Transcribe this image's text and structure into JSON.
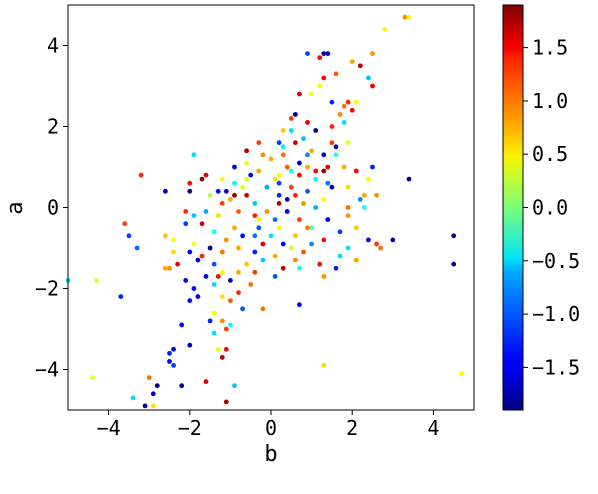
{
  "chart_data": {
    "type": "scatter",
    "title": "",
    "xlabel": "b",
    "ylabel": "a",
    "xlim": [
      -5,
      5
    ],
    "ylim": [
      -5,
      5
    ],
    "x_ticks": [
      -4,
      -2,
      0,
      2,
      4
    ],
    "x_tick_labels": [
      "−4",
      "−2",
      "0",
      "2",
      "4"
    ],
    "y_ticks": [
      -4,
      -2,
      0,
      2,
      4
    ],
    "y_tick_labels": [
      "−4",
      "−2",
      "0",
      "2",
      "4"
    ],
    "grid": false,
    "colormap": "jet",
    "colorbar": {
      "range": [
        -1.9,
        1.9
      ],
      "ticks": [
        -1.5,
        -1.0,
        -0.5,
        0.0,
        0.5,
        1.0,
        1.5
      ],
      "tick_labels": [
        "−1.5",
        "−1.0",
        "−0.5",
        "0.0",
        "0.5",
        "1.0",
        "1.5"
      ]
    },
    "points": [
      [
        3.3,
        4.7,
        0.9
      ],
      [
        3.4,
        4.7,
        0.5
      ],
      [
        2.8,
        4.4,
        0.5
      ],
      [
        2.5,
        3.8,
        0.9
      ],
      [
        1.3,
        3.8,
        -1.9
      ],
      [
        1.4,
        3.8,
        -1.6
      ],
      [
        0.9,
        3.8,
        -1.2
      ],
      [
        1.2,
        3.7,
        1.4
      ],
      [
        2.0,
        3.6,
        0.8
      ],
      [
        2.2,
        3.5,
        1.6
      ],
      [
        1.3,
        3.2,
        1.4
      ],
      [
        1.6,
        3.3,
        1.1
      ],
      [
        1.2,
        3.0,
        0.5
      ],
      [
        2.4,
        3.2,
        -0.7
      ],
      [
        0.7,
        2.8,
        1.6
      ],
      [
        1.0,
        2.8,
        0.4
      ],
      [
        2.5,
        3.0,
        1.5
      ],
      [
        1.5,
        2.6,
        -1.3
      ],
      [
        1.9,
        2.6,
        1.3
      ],
      [
        1.8,
        2.5,
        1.0
      ],
      [
        2.1,
        2.6,
        0.5
      ],
      [
        1.7,
        2.3,
        0.9
      ],
      [
        1.8,
        2.1,
        -0.6
      ],
      [
        2.0,
        2.4,
        1.4
      ],
      [
        0.6,
        2.3,
        -1.8
      ],
      [
        0.5,
        2.2,
        1.2
      ],
      [
        0.9,
        2.1,
        1.5
      ],
      [
        1.1,
        1.9,
        -1.8
      ],
      [
        0.5,
        1.9,
        -0.6
      ],
      [
        0.3,
        1.9,
        0.7
      ],
      [
        1.9,
        1.6,
        0.4
      ],
      [
        1.5,
        1.6,
        1.2
      ],
      [
        0.8,
        1.7,
        -0.7
      ],
      [
        1.6,
        1.5,
        -1.7
      ],
      [
        1.0,
        1.4,
        0.8
      ],
      [
        1.6,
        1.3,
        -0.3
      ],
      [
        0.6,
        1.6,
        1.6
      ],
      [
        0.2,
        1.6,
        -1.2
      ],
      [
        -0.3,
        1.6,
        1.2
      ],
      [
        -0.6,
        1.4,
        1.7
      ],
      [
        0.9,
        1.3,
        -0.9
      ],
      [
        1.3,
        1.3,
        -1.6
      ],
      [
        1.4,
        1.0,
        1.5
      ],
      [
        0.3,
        1.5,
        -0.5
      ],
      [
        -0.2,
        1.3,
        0.9
      ],
      [
        -1.9,
        1.3,
        -0.6
      ],
      [
        0.3,
        1.3,
        1.0
      ],
      [
        0.0,
        1.2,
        0.8
      ],
      [
        -0.6,
        1.1,
        0.4
      ],
      [
        0.4,
        1.0,
        1.1
      ],
      [
        1.3,
        0.9,
        1.8
      ],
      [
        1.1,
        0.9,
        1.4
      ],
      [
        0.9,
        1.0,
        0.8
      ],
      [
        -0.9,
        1.0,
        -1.5
      ],
      [
        -0.3,
        0.9,
        0.8
      ],
      [
        0.5,
        0.9,
        -0.4
      ],
      [
        0.7,
        0.8,
        1.4
      ],
      [
        1.1,
        0.7,
        -0.5
      ],
      [
        1.8,
        1.0,
        0.8
      ],
      [
        0.2,
        0.8,
        0.5
      ],
      [
        -0.5,
        0.8,
        -1.4
      ],
      [
        0.1,
        0.7,
        0.6
      ],
      [
        -1.2,
        0.7,
        0.4
      ],
      [
        -1.7,
        0.7,
        1.9
      ],
      [
        -1.6,
        0.8,
        1.5
      ],
      [
        -3.2,
        0.8,
        1.3
      ],
      [
        2.1,
        0.9,
        1.4
      ],
      [
        2.5,
        1.0,
        -1.3
      ],
      [
        1.4,
        0.6,
        -1.0
      ],
      [
        1.5,
        0.5,
        -1.7
      ],
      [
        0.2,
        0.6,
        -1.2
      ],
      [
        -0.9,
        0.6,
        -0.5
      ],
      [
        0.5,
        0.5,
        1.2
      ],
      [
        -0.1,
        0.5,
        -0.8
      ],
      [
        -0.7,
        0.5,
        0.3
      ],
      [
        1.9,
        0.5,
        0.6
      ],
      [
        -2.0,
        0.6,
        1.4
      ],
      [
        2.4,
        0.7,
        0.5
      ],
      [
        3.4,
        0.7,
        -1.8
      ],
      [
        2.3,
        0.3,
        0.8
      ],
      [
        0.9,
        0.4,
        -1.1
      ],
      [
        0.6,
        0.3,
        1.3
      ],
      [
        0.4,
        0.2,
        -1.6
      ],
      [
        -0.6,
        0.3,
        1.6
      ],
      [
        -0.9,
        0.3,
        1.8
      ],
      [
        -1.0,
        0.2,
        0.8
      ],
      [
        -1.5,
        0.3,
        0.2
      ],
      [
        -1.3,
        0.4,
        -1.4
      ],
      [
        -2.0,
        0.4,
        -1.9
      ],
      [
        -2.6,
        0.4,
        -1.6
      ],
      [
        -1.2,
        0.1,
        1.2
      ],
      [
        -0.4,
        0.1,
        -0.7
      ],
      [
        0.2,
        0.1,
        1.7
      ],
      [
        0.8,
        0.1,
        0.9
      ],
      [
        1.3,
        0.2,
        0.5
      ],
      [
        2.2,
        0.2,
        -0.9
      ],
      [
        2.6,
        0.3,
        0.9
      ],
      [
        2.3,
        0.0,
        -0.4
      ],
      [
        1.9,
        0.0,
        1.0
      ],
      [
        1.1,
        0.0,
        -0.8
      ],
      [
        0.4,
        -0.1,
        -1.5
      ],
      [
        -0.1,
        -0.1,
        0.9
      ],
      [
        -0.8,
        -0.1,
        1.1
      ],
      [
        -1.6,
        -0.1,
        -0.8
      ],
      [
        -2.1,
        -0.1,
        1.3
      ],
      [
        -1.9,
        -0.2,
        -0.7
      ],
      [
        -1.3,
        -0.2,
        0.6
      ],
      [
        -0.4,
        -0.2,
        1.3
      ],
      [
        0.1,
        -0.3,
        -1.0
      ],
      [
        0.7,
        -0.3,
        1.2
      ],
      [
        1.4,
        -0.3,
        -1.7
      ],
      [
        1.9,
        -0.2,
        0.9
      ],
      [
        2.1,
        -0.5,
        0.7
      ],
      [
        -2.1,
        -0.4,
        -1.2
      ],
      [
        -1.7,
        -0.4,
        1.6
      ],
      [
        -0.3,
        -0.5,
        -1.1
      ],
      [
        0.2,
        -0.5,
        0.5
      ],
      [
        0.9,
        -0.5,
        1.0
      ],
      [
        1.7,
        -0.6,
        -1.2
      ],
      [
        -0.9,
        -0.5,
        0.8
      ],
      [
        -1.4,
        -0.6,
        -0.4
      ],
      [
        -3.6,
        -0.4,
        1.2
      ],
      [
        -2.6,
        -0.7,
        0.7
      ],
      [
        -0.7,
        -0.7,
        -1.4
      ],
      [
        0.0,
        -0.7,
        -0.6
      ],
      [
        0.6,
        -0.7,
        0.7
      ],
      [
        1.3,
        -0.8,
        1.4
      ],
      [
        2.4,
        -0.8,
        -1.5
      ],
      [
        3.0,
        -0.8,
        -1.8
      ],
      [
        -1.1,
        -0.8,
        0.9
      ],
      [
        -1.9,
        -0.9,
        0.4
      ],
      [
        -0.2,
        -0.9,
        1.5
      ],
      [
        0.3,
        -0.9,
        -1.4
      ],
      [
        1.0,
        -0.9,
        -0.9
      ],
      [
        -3.5,
        -0.7,
        -1.2
      ],
      [
        -3.3,
        -1.0,
        -1.0
      ],
      [
        -2.4,
        -0.8,
        0.5
      ],
      [
        4.5,
        -0.7,
        -1.8
      ],
      [
        2.6,
        -0.9,
        1.2
      ],
      [
        -1.5,
        -1.0,
        -1.9
      ],
      [
        -0.8,
        -1.0,
        0.8
      ],
      [
        0.5,
        -1.0,
        0.3
      ],
      [
        1.9,
        -1.0,
        -0.6
      ],
      [
        -1.2,
        -1.1,
        1.0
      ],
      [
        -0.4,
        -1.1,
        -1.3
      ],
      [
        0.1,
        -1.2,
        0.8
      ],
      [
        0.8,
        -1.1,
        1.1
      ],
      [
        1.7,
        -1.2,
        -0.6
      ],
      [
        2.7,
        -1.0,
        1.0
      ],
      [
        -2.4,
        -1.1,
        0.6
      ],
      [
        -2.0,
        -1.1,
        -1.4
      ],
      [
        -1.7,
        -1.2,
        1.3
      ],
      [
        -0.2,
        -1.3,
        -0.7
      ],
      [
        0.6,
        -1.3,
        0.9
      ],
      [
        1.2,
        -1.4,
        1.4
      ],
      [
        2.1,
        -1.3,
        0.8
      ],
      [
        -2.5,
        -1.5,
        0.9
      ],
      [
        -1.4,
        -1.4,
        -1.1
      ],
      [
        -0.6,
        -1.4,
        0.7
      ],
      [
        0.3,
        -1.5,
        1.6
      ],
      [
        1.6,
        -1.5,
        -1.3
      ],
      [
        -2.3,
        -1.4,
        1.5
      ],
      [
        -1.2,
        -1.6,
        0.5
      ],
      [
        -0.4,
        -1.6,
        1.2
      ],
      [
        0.7,
        -1.5,
        -0.4
      ],
      [
        1.3,
        -1.7,
        0.9
      ],
      [
        4.5,
        -1.4,
        -1.8
      ],
      [
        -1.6,
        -1.7,
        -1.5
      ],
      [
        -1.3,
        -1.7,
        1.4
      ],
      [
        -0.8,
        -1.6,
        0.8
      ],
      [
        0.1,
        -1.7,
        -1.1
      ],
      [
        -1.0,
        -1.8,
        -1.7
      ],
      [
        -1.4,
        -1.9,
        -0.6
      ],
      [
        -0.5,
        -1.9,
        1.0
      ],
      [
        -1.9,
        -2.0,
        -1.4
      ],
      [
        -2.6,
        -1.5,
        0.8
      ],
      [
        -3.7,
        -2.2,
        -1.3
      ],
      [
        -4.3,
        -1.8,
        0.3
      ],
      [
        -5.0,
        -1.8,
        -0.6
      ],
      [
        -0.8,
        -2.1,
        1.3
      ],
      [
        -1.2,
        -2.2,
        0.6
      ],
      [
        -1.8,
        -2.2,
        -1.5
      ],
      [
        -1.0,
        -2.3,
        1.1
      ],
      [
        -2.0,
        -2.3,
        -1.4
      ],
      [
        -0.7,
        -2.5,
        -1.1
      ],
      [
        0.7,
        -2.4,
        -1.6
      ],
      [
        -1.4,
        -2.6,
        0.5
      ],
      [
        -0.2,
        -2.5,
        1.0
      ],
      [
        -1.2,
        -2.8,
        0.9
      ],
      [
        -1.5,
        -2.8,
        -1.3
      ],
      [
        -2.2,
        -2.9,
        -1.4
      ],
      [
        -1.1,
        -3.0,
        1.2
      ],
      [
        -1.4,
        -3.1,
        -0.6
      ],
      [
        -2.0,
        -3.4,
        -1.6
      ],
      [
        -2.4,
        -3.5,
        -1.4
      ],
      [
        -1.1,
        -3.5,
        1.4
      ],
      [
        -1.3,
        -3.5,
        0.4
      ],
      [
        -2.5,
        -3.6,
        -1.3
      ],
      [
        -2.5,
        -3.8,
        -1.5
      ],
      [
        -1.2,
        -3.7,
        1.7
      ],
      [
        1.3,
        -3.9,
        0.6
      ],
      [
        -2.4,
        -3.9,
        -1.2
      ],
      [
        -3.0,
        -4.2,
        1.0
      ],
      [
        -2.2,
        -4.4,
        -1.8
      ],
      [
        -1.6,
        -4.3,
        1.6
      ],
      [
        -2.8,
        -4.4,
        -1.9
      ],
      [
        -0.9,
        -4.4,
        -0.7
      ],
      [
        -2.9,
        -4.6,
        -1.7
      ],
      [
        -3.4,
        -4.7,
        -0.6
      ],
      [
        -3.1,
        -4.9,
        -1.8
      ],
      [
        -2.9,
        -4.9,
        0.6
      ],
      [
        -1.1,
        -4.8,
        1.7
      ],
      [
        -4.4,
        -4.2,
        0.4
      ],
      [
        4.7,
        -4.1,
        0.5
      ],
      [
        -1.0,
        -2.9,
        -0.4
      ],
      [
        -1.8,
        -1.3,
        -1.6
      ],
      [
        -2.1,
        -1.8,
        -1.6
      ],
      [
        -0.3,
        -0.3,
        0.5
      ],
      [
        0.2,
        0.3,
        -1.3
      ],
      [
        1.5,
        2.0,
        1.3
      ],
      [
        0.7,
        1.1,
        -1.5
      ],
      [
        -1.1,
        0.4,
        -1.6
      ],
      [
        -0.4,
        -0.7,
        -1.0
      ],
      [
        1.0,
        -0.5,
        -0.2
      ],
      [
        -0.6,
        0.7,
        0.3
      ]
    ]
  }
}
